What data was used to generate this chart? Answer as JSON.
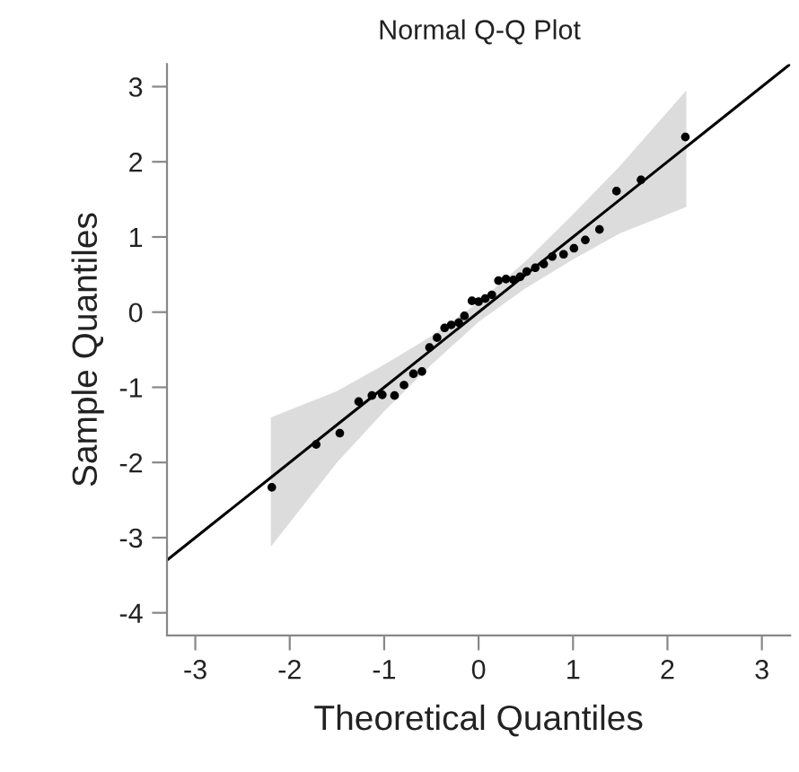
{
  "chart_data": {
    "type": "scatter",
    "title": "Normal Q-Q Plot",
    "xlabel": "Theoretical Quantiles",
    "ylabel": "Sample Quantiles",
    "xlim": [
      -3.3,
      3.3
    ],
    "ylim": [
      -4.3,
      3.3
    ],
    "xticks": [
      -3,
      -2,
      -1,
      0,
      1,
      2,
      3
    ],
    "yticks": [
      -4,
      -3,
      -2,
      -1,
      0,
      1,
      2,
      3
    ],
    "grid": false,
    "series": [
      {
        "type": "line",
        "color": "#000000",
        "line_style": "solid",
        "x": [
          -3.3,
          -2.2,
          -1.5,
          -1,
          -0.5,
          0,
          0.5,
          1,
          1.5,
          2.2,
          3.3
        ],
        "values": [
          -3.3,
          -2.2,
          -1.5,
          -1,
          -0.5,
          0,
          0.5,
          1,
          1.5,
          2.2,
          3.3
        ],
        "lower": [
          null,
          -3.12,
          -2.0,
          -1.32,
          -0.7,
          -0.13,
          0.32,
          0.7,
          1.05,
          1.4,
          null
        ],
        "upper": [
          null,
          -1.4,
          -1.05,
          -0.7,
          -0.32,
          0.13,
          0.68,
          1.3,
          1.95,
          2.95,
          null
        ],
        "marker": "none"
      },
      {
        "color": "#000000",
        "marker": "circle",
        "x": [
          -2.19,
          -1.72,
          -1.47,
          -1.27,
          -1.13,
          -1.02,
          -0.89,
          -0.79,
          -0.69,
          -0.6,
          -0.52,
          -0.44,
          -0.36,
          -0.29,
          -0.21,
          -0.15,
          -0.07,
          0.0,
          0.07,
          0.14,
          0.21,
          0.29,
          0.37,
          0.44,
          0.51,
          0.6,
          0.69,
          0.78,
          0.9,
          1.01,
          1.13,
          1.28,
          1.46,
          1.72,
          2.19
        ],
        "values": [
          -2.33,
          -1.76,
          -1.61,
          -1.19,
          -1.11,
          -1.1,
          -1.11,
          -0.97,
          -0.82,
          -0.79,
          -0.47,
          -0.34,
          -0.21,
          -0.17,
          -0.14,
          -0.05,
          0.15,
          0.14,
          0.18,
          0.23,
          0.42,
          0.44,
          0.43,
          0.47,
          0.54,
          0.59,
          0.64,
          0.74,
          0.77,
          0.85,
          0.96,
          1.1,
          1.61,
          1.76,
          2.33
        ]
      }
    ]
  }
}
